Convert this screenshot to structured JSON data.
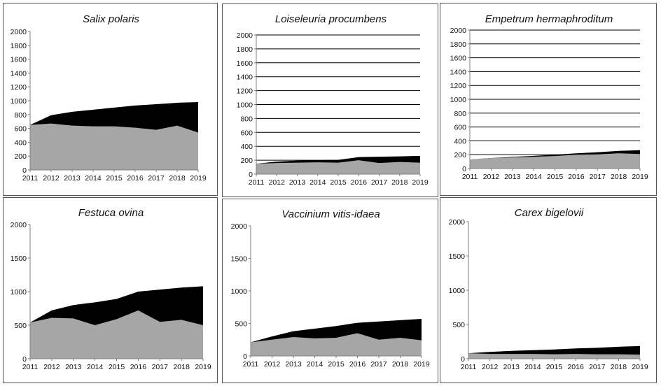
{
  "chart_data": [
    {
      "type": "area",
      "title": "Salix polaris",
      "x": [
        "2011",
        "2012",
        "2013",
        "2014",
        "2015",
        "2016",
        "2017",
        "2018",
        "2019"
      ],
      "ylim": [
        0,
        2000
      ],
      "yticks": [
        0,
        200,
        400,
        600,
        800,
        1000,
        1200,
        1400,
        1600,
        1800,
        2000
      ],
      "grid": false,
      "series": [
        {
          "values": [
            650,
            670,
            640,
            630,
            630,
            610,
            580,
            640,
            540
          ],
          "color": "#a6a6a6"
        },
        {
          "values": [
            650,
            790,
            840,
            870,
            900,
            930,
            950,
            970,
            980
          ],
          "color": "#000000"
        }
      ]
    },
    {
      "type": "area",
      "title": "Loiseleuria procumbens",
      "x": [
        "2011",
        "2012",
        "2013",
        "2014",
        "2015",
        "2016",
        "2017",
        "2018",
        "2019"
      ],
      "ylim": [
        0,
        2000
      ],
      "yticks": [
        0,
        200,
        400,
        600,
        800,
        1000,
        1200,
        1400,
        1600,
        1800,
        2000
      ],
      "grid": true,
      "series": [
        {
          "values": [
            150,
            160,
            165,
            170,
            165,
            200,
            160,
            175,
            165
          ],
          "color": "#a6a6a6"
        },
        {
          "values": [
            150,
            180,
            195,
            200,
            205,
            245,
            250,
            255,
            262
          ],
          "color": "#000000"
        }
      ]
    },
    {
      "type": "area",
      "title": "Empetrum hermaphroditum",
      "x": [
        "2011",
        "2012",
        "2013",
        "2014",
        "2015",
        "2016",
        "2017",
        "2018",
        "2019"
      ],
      "ylim": [
        0,
        2000
      ],
      "yticks": [
        0,
        200,
        400,
        600,
        800,
        1000,
        1200,
        1400,
        1600,
        1800,
        2000
      ],
      "grid": true,
      "series": [
        {
          "values": [
            130,
            150,
            160,
            170,
            180,
            200,
            205,
            220,
            210
          ],
          "color": "#a6a6a6"
        },
        {
          "values": [
            130,
            152,
            168,
            183,
            200,
            220,
            235,
            255,
            265
          ],
          "color": "#000000"
        }
      ]
    },
    {
      "type": "area",
      "title": "Festuca ovina",
      "x": [
        "2011",
        "2012",
        "2013",
        "2014",
        "2015",
        "2016",
        "2017",
        "2018",
        "2019"
      ],
      "ylim": [
        0,
        2000
      ],
      "yticks": [
        0,
        500,
        1000,
        1500,
        2000
      ],
      "grid": false,
      "series": [
        {
          "values": [
            540,
            610,
            600,
            500,
            590,
            720,
            550,
            580,
            500
          ],
          "color": "#a6a6a6"
        },
        {
          "values": [
            540,
            720,
            800,
            840,
            890,
            1000,
            1030,
            1060,
            1080
          ],
          "color": "#000000"
        }
      ]
    },
    {
      "type": "area",
      "title": "Vaccinium vitis-idaea",
      "x": [
        "2011",
        "2012",
        "2013",
        "2014",
        "2015",
        "2016",
        "2017",
        "2018",
        "2019"
      ],
      "ylim": [
        0,
        2000
      ],
      "yticks": [
        0,
        500,
        1000,
        1500,
        2000
      ],
      "grid": false,
      "series": [
        {
          "values": [
            210,
            250,
            290,
            270,
            280,
            350,
            250,
            280,
            240
          ],
          "color": "#a6a6a6"
        },
        {
          "values": [
            210,
            300,
            380,
            420,
            460,
            510,
            530,
            550,
            570
          ],
          "color": "#000000"
        }
      ]
    },
    {
      "type": "area",
      "title": "Carex bigelovii",
      "x": [
        "2011",
        "2012",
        "2013",
        "2014",
        "2015",
        "2016",
        "2017",
        "2018",
        "2019"
      ],
      "ylim": [
        0,
        2000
      ],
      "yticks": [
        0,
        500,
        1000,
        1500,
        2000
      ],
      "grid": false,
      "series": [
        {
          "values": [
            80,
            70,
            70,
            70,
            65,
            70,
            65,
            65,
            60
          ],
          "color": "#a6a6a6"
        },
        {
          "values": [
            80,
            100,
            115,
            125,
            135,
            150,
            160,
            175,
            185
          ],
          "color": "#000000"
        }
      ]
    }
  ]
}
